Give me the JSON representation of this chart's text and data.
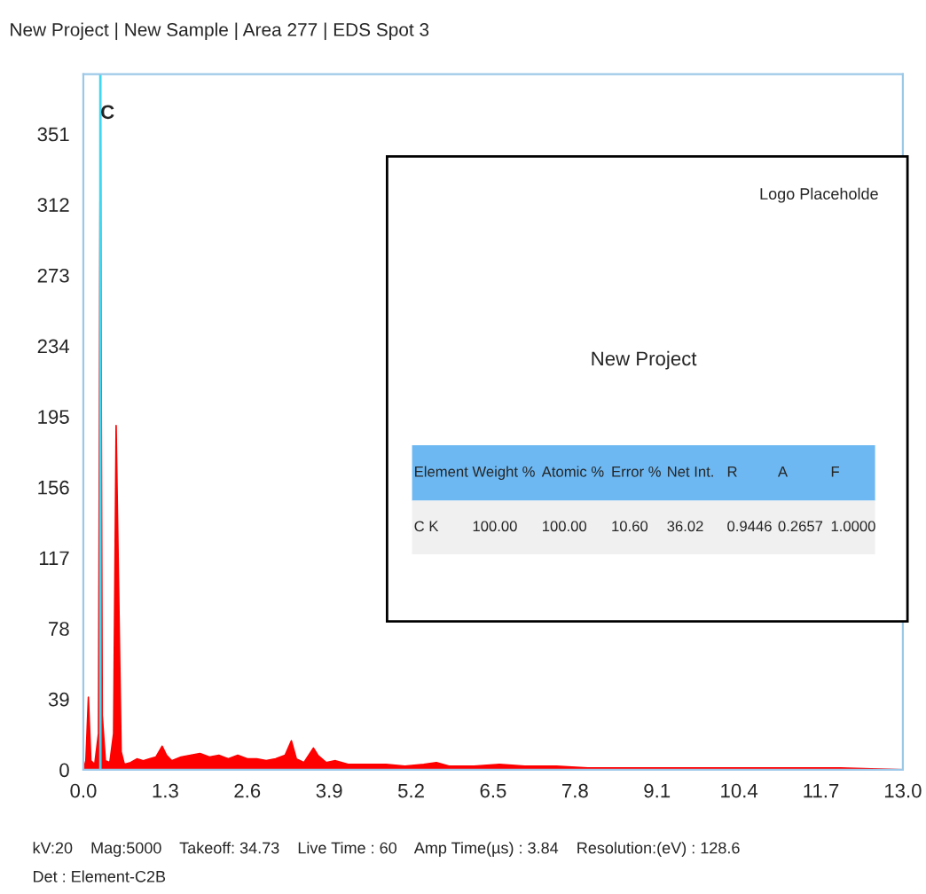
{
  "chart_data": {
    "type": "area",
    "title": "New Project | New Sample | Area 277 | EDS Spot 3",
    "x": [
      0.0,
      0.04,
      0.08,
      0.12,
      0.18,
      0.24,
      0.27,
      0.3,
      0.35,
      0.42,
      0.48,
      0.52,
      0.56,
      0.6,
      0.65,
      0.75,
      0.85,
      0.95,
      1.05,
      1.15,
      1.25,
      1.32,
      1.4,
      1.55,
      1.7,
      1.85,
      2.0,
      2.15,
      2.3,
      2.45,
      2.6,
      2.75,
      2.9,
      3.05,
      3.2,
      3.3,
      3.38,
      3.5,
      3.65,
      3.72,
      3.85,
      4.0,
      4.2,
      4.5,
      4.8,
      5.1,
      5.4,
      5.6,
      5.8,
      6.2,
      6.6,
      7.0,
      7.5,
      8.0,
      9.0,
      10.0,
      11.0,
      12.0,
      13.0
    ],
    "series": [
      {
        "color": "#ff0000",
        "values": [
          0,
          5,
          40,
          5,
          3,
          20,
          370,
          30,
          5,
          4,
          20,
          190,
          100,
          10,
          3,
          4,
          6,
          5,
          6,
          7,
          13,
          8,
          5,
          7,
          8,
          9,
          7,
          8,
          6,
          8,
          6,
          6,
          5,
          6,
          8,
          16,
          6,
          4,
          12,
          8,
          4,
          5,
          3,
          3,
          3,
          2,
          3,
          4,
          2,
          2,
          3,
          2,
          2,
          1,
          1,
          1,
          1,
          1,
          0
        ]
      }
    ],
    "xlim": [
      0,
      13.0
    ],
    "ylim": [
      0,
      384
    ],
    "xticks": [
      {
        "value": 0,
        "label": "0.0"
      },
      {
        "value": 1.3,
        "label": "1.3"
      },
      {
        "value": 2.6,
        "label": "2.6"
      },
      {
        "value": 3.9,
        "label": "3.9"
      },
      {
        "value": 5.2,
        "label": "5.2"
      },
      {
        "value": 6.5,
        "label": "6.5"
      },
      {
        "value": 7.8,
        "label": "7.8"
      },
      {
        "value": 9.1,
        "label": "9.1"
      },
      {
        "value": 10.4,
        "label": "10.4"
      },
      {
        "value": 11.7,
        "label": "11.7"
      },
      {
        "value": 13.0,
        "label": "13.0"
      }
    ],
    "yticks": [
      0,
      39,
      78,
      117,
      156,
      195,
      234,
      273,
      312,
      351
    ],
    "ref_lines": [
      {
        "axis": "x",
        "value": 0.27,
        "label": "C",
        "color": "#40d8f0"
      }
    ],
    "grid": false,
    "annotations": [
      "Logo Placeholde",
      "New Project",
      "Element",
      "Weight %",
      "Atomic %",
      "Error %",
      "Net Int.",
      "R",
      "A",
      "F",
      "C K",
      "100.00",
      "100.00",
      "10.60",
      "36.02",
      "0.9446",
      "0.2657",
      "1.0000",
      "kV:20    Mag:5000    Takeoff: 34.73    Live Time : 60    Amp Time(µs) : 3.84    Resolution:(eV) : 128.6",
      "Det : Element-C2B"
    ]
  }
}
